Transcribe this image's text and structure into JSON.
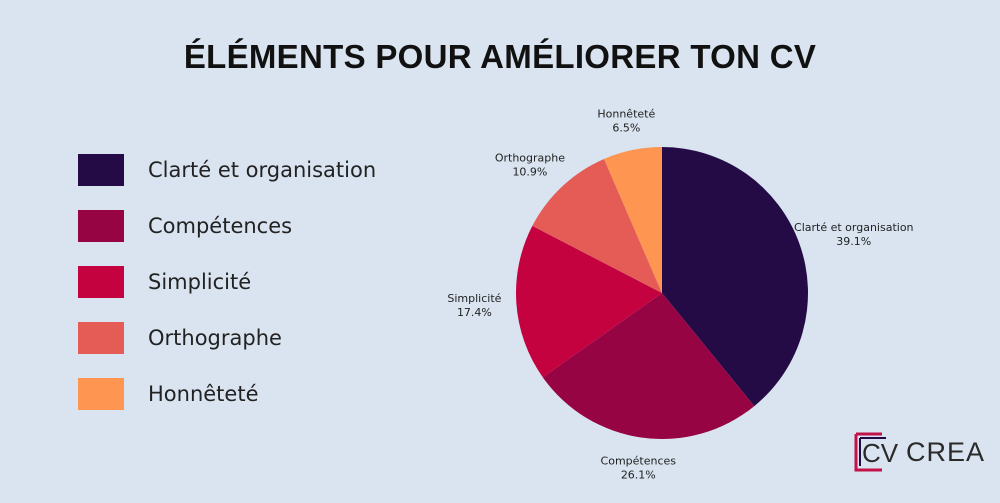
{
  "title": "ÉLÉMENTS POUR AMÉLIORER TON CV",
  "logo": {
    "text": "CREA",
    "mark_text": "CV",
    "colors": [
      "#c2124a",
      "#250b46"
    ]
  },
  "chart_data": {
    "type": "pie",
    "title": "ÉLÉMENTS POUR AMÉLIORER TON CV",
    "start_angle_deg": 0,
    "direction": "clockwise",
    "legend_position": "left",
    "slices": [
      {
        "label": "Clarté et organisation",
        "value": 39.1,
        "value_label": "39.1%",
        "color": "#250b46"
      },
      {
        "label": "Compétences",
        "value": 26.1,
        "value_label": "26.1%",
        "color": "#960444"
      },
      {
        "label": "Simplicité",
        "value": 17.4,
        "value_label": "17.4%",
        "color": "#c4023f"
      },
      {
        "label": "Orthographe",
        "value": 10.9,
        "value_label": "10.9%",
        "color": "#e55c56"
      },
      {
        "label": "Honnêteté",
        "value": 6.5,
        "value_label": "6.5%",
        "color": "#fe9550"
      }
    ]
  }
}
